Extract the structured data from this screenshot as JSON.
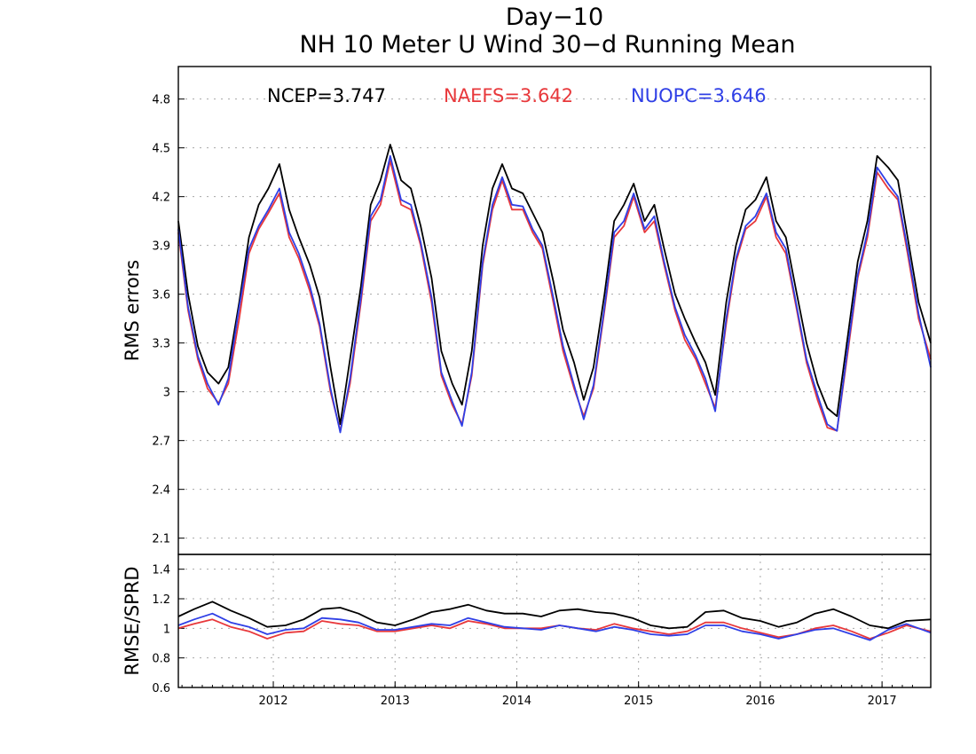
{
  "chart_data": [
    {
      "type": "line",
      "title": "Day−10",
      "subtitle": "NH 10 Meter U Wind 30−d Running Mean",
      "ylabel": "RMS errors",
      "xlabel": "",
      "xlim": [
        2011.22,
        2017.4
      ],
      "ylim": [
        2.0,
        5.0
      ],
      "yticks": [
        2.1,
        2.4,
        2.7,
        3.0,
        3.3,
        3.6,
        3.9,
        4.2,
        4.5,
        4.8
      ],
      "ytick_labels": [
        "2.1",
        "2.4",
        "2.7",
        "3",
        "3.3",
        "3.6",
        "3.9",
        "4.2",
        "4.5",
        "4.8"
      ],
      "grid": true,
      "legend_position": "top",
      "series": [
        {
          "name": "NCEP=3.747",
          "color": "#000000",
          "x": [
            2011.22,
            2011.3,
            2011.38,
            2011.46,
            2011.55,
            2011.63,
            2011.72,
            2011.8,
            2011.88,
            2011.96,
            2012.05,
            2012.13,
            2012.21,
            2012.3,
            2012.38,
            2012.47,
            2012.55,
            2012.63,
            2012.72,
            2012.8,
            2012.88,
            2012.96,
            2013.05,
            2013.13,
            2013.21,
            2013.3,
            2013.38,
            2013.47,
            2013.55,
            2013.63,
            2013.72,
            2013.8,
            2013.88,
            2013.96,
            2014.05,
            2014.13,
            2014.21,
            2014.3,
            2014.38,
            2014.47,
            2014.55,
            2014.63,
            2014.72,
            2014.8,
            2014.88,
            2014.96,
            2015.05,
            2015.13,
            2015.21,
            2015.3,
            2015.38,
            2015.47,
            2015.55,
            2015.63,
            2015.72,
            2015.8,
            2015.88,
            2015.96,
            2016.05,
            2016.13,
            2016.21,
            2016.3,
            2016.38,
            2016.47,
            2016.55,
            2016.63,
            2016.72,
            2016.8,
            2016.88,
            2016.96,
            2017.05,
            2017.13,
            2017.21,
            2017.3,
            2017.4
          ],
          "values": [
            4.05,
            3.6,
            3.28,
            3.12,
            3.05,
            3.15,
            3.55,
            3.95,
            4.15,
            4.25,
            4.4,
            4.12,
            3.95,
            3.78,
            3.58,
            3.15,
            2.8,
            3.2,
            3.65,
            4.15,
            4.3,
            4.52,
            4.3,
            4.25,
            4.02,
            3.7,
            3.25,
            3.05,
            2.92,
            3.25,
            3.9,
            4.25,
            4.4,
            4.25,
            4.22,
            4.1,
            3.98,
            3.68,
            3.38,
            3.18,
            2.95,
            3.15,
            3.6,
            4.05,
            4.15,
            4.28,
            4.05,
            4.15,
            3.88,
            3.6,
            3.45,
            3.3,
            3.18,
            2.98,
            3.55,
            3.9,
            4.12,
            4.18,
            4.32,
            4.05,
            3.95,
            3.6,
            3.3,
            3.05,
            2.9,
            2.85,
            3.35,
            3.8,
            4.05,
            4.45,
            4.38,
            4.3,
            3.95,
            3.55,
            3.3
          ]
        },
        {
          "name": "NAEFS=3.642",
          "color": "#e8383b",
          "x": [
            2011.22,
            2011.3,
            2011.38,
            2011.46,
            2011.55,
            2011.63,
            2011.72,
            2011.8,
            2011.88,
            2011.96,
            2012.05,
            2012.13,
            2012.21,
            2012.3,
            2012.38,
            2012.47,
            2012.55,
            2012.63,
            2012.72,
            2012.8,
            2012.88,
            2012.96,
            2013.05,
            2013.13,
            2013.21,
            2013.3,
            2013.38,
            2013.47,
            2013.55,
            2013.63,
            2013.72,
            2013.8,
            2013.88,
            2013.96,
            2014.05,
            2014.13,
            2014.21,
            2014.3,
            2014.38,
            2014.47,
            2014.55,
            2014.63,
            2014.72,
            2014.8,
            2014.88,
            2014.96,
            2015.05,
            2015.13,
            2015.21,
            2015.3,
            2015.38,
            2015.47,
            2015.55,
            2015.63,
            2015.72,
            2015.8,
            2015.88,
            2015.96,
            2016.05,
            2016.13,
            2016.21,
            2016.3,
            2016.38,
            2016.47,
            2016.55,
            2016.63,
            2016.72,
            2016.8,
            2016.88,
            2016.96,
            2017.05,
            2017.13,
            2017.21,
            2017.3,
            2017.4
          ],
          "values": [
            3.98,
            3.5,
            3.2,
            3.02,
            2.93,
            3.05,
            3.45,
            3.85,
            4.0,
            4.1,
            4.22,
            3.95,
            3.82,
            3.62,
            3.4,
            3.0,
            2.76,
            3.05,
            3.55,
            4.05,
            4.15,
            4.42,
            4.15,
            4.12,
            3.9,
            3.55,
            3.1,
            2.92,
            2.8,
            3.1,
            3.78,
            4.12,
            4.3,
            4.12,
            4.12,
            3.98,
            3.88,
            3.55,
            3.25,
            3.02,
            2.85,
            3.02,
            3.5,
            3.95,
            4.02,
            4.2,
            3.98,
            4.05,
            3.78,
            3.5,
            3.32,
            3.2,
            3.05,
            2.9,
            3.42,
            3.8,
            4.0,
            4.05,
            4.2,
            3.95,
            3.85,
            3.5,
            3.18,
            2.95,
            2.78,
            2.76,
            3.25,
            3.7,
            3.95,
            4.35,
            4.25,
            4.18,
            3.85,
            3.45,
            3.2
          ]
        },
        {
          "name": "NUOPC=3.646",
          "color": "#2f3fe6",
          "x": [
            2011.22,
            2011.3,
            2011.38,
            2011.46,
            2011.55,
            2011.63,
            2011.72,
            2011.8,
            2011.88,
            2011.96,
            2012.05,
            2012.13,
            2012.21,
            2012.3,
            2012.38,
            2012.47,
            2012.55,
            2012.63,
            2012.72,
            2012.8,
            2012.88,
            2012.96,
            2013.05,
            2013.13,
            2013.21,
            2013.3,
            2013.38,
            2013.47,
            2013.55,
            2013.63,
            2013.72,
            2013.8,
            2013.88,
            2013.96,
            2014.05,
            2014.13,
            2014.21,
            2014.3,
            2014.38,
            2014.47,
            2014.55,
            2014.63,
            2014.72,
            2014.8,
            2014.88,
            2014.96,
            2015.05,
            2015.13,
            2015.21,
            2015.3,
            2015.38,
            2015.47,
            2015.55,
            2015.63,
            2015.72,
            2015.8,
            2015.88,
            2015.96,
            2016.05,
            2016.13,
            2016.21,
            2016.3,
            2016.38,
            2016.47,
            2016.55,
            2016.63,
            2016.72,
            2016.8,
            2016.88,
            2016.96,
            2017.05,
            2017.13,
            2017.21,
            2017.3,
            2017.4
          ],
          "values": [
            4.0,
            3.52,
            3.22,
            3.05,
            2.92,
            3.08,
            3.52,
            3.88,
            4.02,
            4.12,
            4.25,
            3.98,
            3.85,
            3.65,
            3.42,
            3.02,
            2.75,
            3.08,
            3.58,
            4.08,
            4.18,
            4.45,
            4.18,
            4.15,
            3.92,
            3.58,
            3.12,
            2.94,
            2.79,
            3.12,
            3.8,
            4.15,
            4.32,
            4.15,
            4.14,
            4.0,
            3.9,
            3.58,
            3.28,
            3.04,
            2.83,
            3.04,
            3.52,
            3.98,
            4.05,
            4.22,
            4.0,
            4.08,
            3.8,
            3.52,
            3.35,
            3.22,
            3.08,
            2.88,
            3.45,
            3.82,
            4.02,
            4.08,
            4.22,
            3.98,
            3.88,
            3.52,
            3.2,
            2.98,
            2.8,
            2.76,
            3.28,
            3.72,
            3.98,
            4.38,
            4.28,
            4.2,
            3.88,
            3.48,
            3.15
          ]
        }
      ]
    },
    {
      "type": "line",
      "title": "",
      "ylabel": "RMSE/SPRD",
      "xlabel": "",
      "xlim": [
        2011.22,
        2017.4
      ],
      "ylim": [
        0.6,
        1.5
      ],
      "yticks": [
        0.6,
        0.8,
        1.0,
        1.2,
        1.4
      ],
      "ytick_labels": [
        "0.6",
        "0.8",
        "1",
        "1.2",
        "1.4"
      ],
      "xticks": [
        2012,
        2013,
        2014,
        2015,
        2016,
        2017
      ],
      "xtick_labels": [
        "2012",
        "2013",
        "2014",
        "2015",
        "2016",
        "2017"
      ],
      "grid": true,
      "series": [
        {
          "color": "#000000",
          "x": [
            2011.22,
            2011.35,
            2011.5,
            2011.65,
            2011.8,
            2011.95,
            2012.1,
            2012.25,
            2012.4,
            2012.55,
            2012.7,
            2012.85,
            2013.0,
            2013.15,
            2013.3,
            2013.45,
            2013.6,
            2013.75,
            2013.9,
            2014.05,
            2014.2,
            2014.35,
            2014.5,
            2014.65,
            2014.8,
            2014.95,
            2015.1,
            2015.25,
            2015.4,
            2015.55,
            2015.7,
            2015.85,
            2016.0,
            2016.15,
            2016.3,
            2016.45,
            2016.6,
            2016.75,
            2016.9,
            2017.05,
            2017.2,
            2017.4
          ],
          "values": [
            1.08,
            1.13,
            1.18,
            1.12,
            1.07,
            1.01,
            1.02,
            1.06,
            1.13,
            1.14,
            1.1,
            1.04,
            1.02,
            1.06,
            1.11,
            1.13,
            1.16,
            1.12,
            1.1,
            1.1,
            1.08,
            1.12,
            1.13,
            1.11,
            1.1,
            1.07,
            1.02,
            1.0,
            1.01,
            1.11,
            1.12,
            1.07,
            1.05,
            1.01,
            1.04,
            1.1,
            1.13,
            1.08,
            1.02,
            1.0,
            1.05,
            1.06
          ]
        },
        {
          "color": "#e8383b",
          "x": [
            2011.22,
            2011.35,
            2011.5,
            2011.65,
            2011.8,
            2011.95,
            2012.1,
            2012.25,
            2012.4,
            2012.55,
            2012.7,
            2012.85,
            2013.0,
            2013.15,
            2013.3,
            2013.45,
            2013.6,
            2013.75,
            2013.9,
            2014.05,
            2014.2,
            2014.35,
            2014.5,
            2014.65,
            2014.8,
            2014.95,
            2015.1,
            2015.25,
            2015.4,
            2015.55,
            2015.7,
            2015.85,
            2016.0,
            2016.15,
            2016.3,
            2016.45,
            2016.6,
            2016.75,
            2016.9,
            2017.05,
            2017.2,
            2017.4
          ],
          "values": [
            1.0,
            1.03,
            1.06,
            1.01,
            0.98,
            0.93,
            0.97,
            0.98,
            1.05,
            1.03,
            1.02,
            0.98,
            0.98,
            1.0,
            1.02,
            1.0,
            1.05,
            1.03,
            1.0,
            1.0,
            1.0,
            1.02,
            1.0,
            0.99,
            1.03,
            1.0,
            0.98,
            0.96,
            0.98,
            1.04,
            1.04,
            1.0,
            0.97,
            0.94,
            0.96,
            1.0,
            1.02,
            0.98,
            0.93,
            0.97,
            1.02,
            0.98
          ]
        },
        {
          "color": "#2f3fe6",
          "x": [
            2011.22,
            2011.35,
            2011.5,
            2011.65,
            2011.8,
            2011.95,
            2012.1,
            2012.25,
            2012.4,
            2012.55,
            2012.7,
            2012.85,
            2013.0,
            2013.15,
            2013.3,
            2013.45,
            2013.6,
            2013.75,
            2013.9,
            2014.05,
            2014.2,
            2014.35,
            2014.5,
            2014.65,
            2014.8,
            2014.95,
            2015.1,
            2015.25,
            2015.4,
            2015.55,
            2015.7,
            2015.85,
            2016.0,
            2016.15,
            2016.3,
            2016.45,
            2016.6,
            2016.75,
            2016.9,
            2017.05,
            2017.2,
            2017.4
          ],
          "values": [
            1.02,
            1.06,
            1.1,
            1.04,
            1.01,
            0.96,
            0.99,
            1.0,
            1.07,
            1.06,
            1.04,
            0.99,
            0.99,
            1.01,
            1.03,
            1.02,
            1.07,
            1.04,
            1.01,
            1.0,
            0.99,
            1.02,
            1.0,
            0.98,
            1.01,
            0.99,
            0.96,
            0.95,
            0.96,
            1.02,
            1.02,
            0.98,
            0.96,
            0.93,
            0.96,
            0.99,
            1.0,
            0.96,
            0.92,
            0.99,
            1.03,
            0.97
          ]
        }
      ]
    }
  ]
}
